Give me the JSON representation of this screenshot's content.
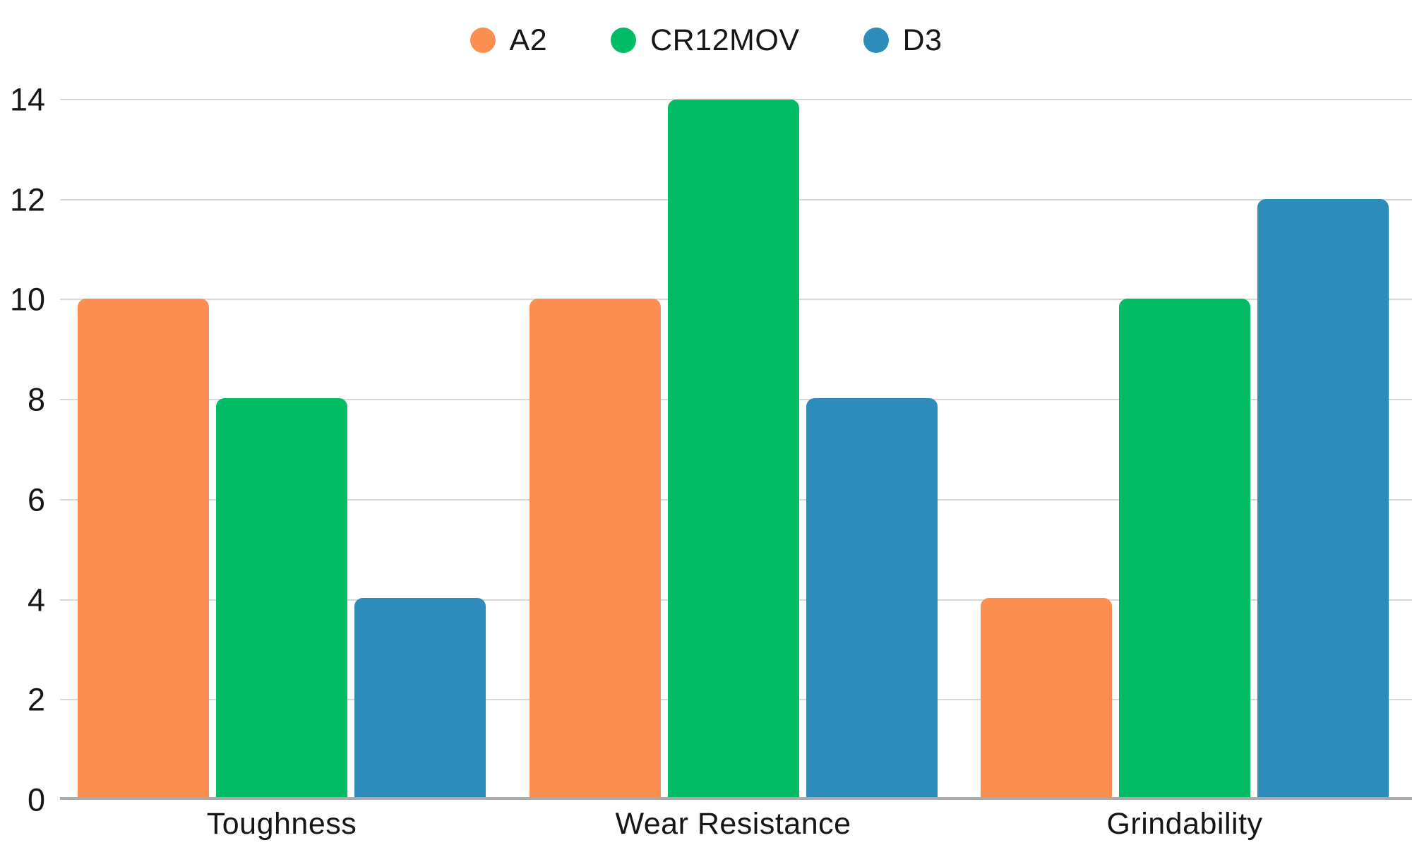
{
  "chart_data": {
    "type": "bar",
    "title": "",
    "xlabel": "",
    "ylabel": "",
    "categories": [
      "Toughness",
      "Wear Resistance",
      "Grindability"
    ],
    "series": [
      {
        "name": "A2",
        "color": "#FB8E51",
        "values": [
          10,
          10,
          4
        ]
      },
      {
        "name": "CR12MOV",
        "color": "#03BD66",
        "values": [
          8,
          14,
          10
        ]
      },
      {
        "name": "D3",
        "color": "#2E8CBA",
        "values": [
          4,
          8,
          12
        ]
      }
    ],
    "yticks": [
      0,
      2,
      4,
      6,
      8,
      10,
      12,
      14
    ],
    "ylim": [
      0,
      14
    ],
    "grid": true,
    "legend_position": "top"
  },
  "colors": {
    "background": "#FFFFFF",
    "gridline": "#D8D8D8",
    "axis_line": "#AAAAAA",
    "text": "#161616"
  }
}
